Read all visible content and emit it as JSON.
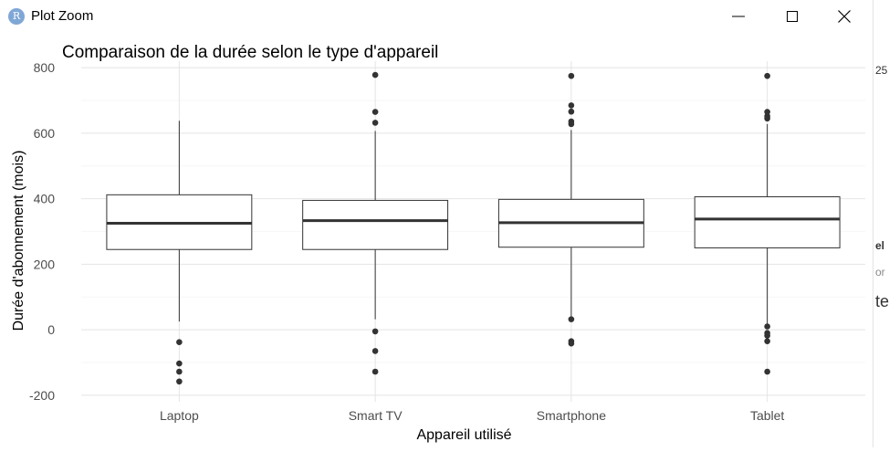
{
  "window": {
    "app_icon_letter": "R",
    "title": "Plot Zoom",
    "buttons": {
      "minimize": "minimize",
      "maximize": "maximize",
      "close": "close"
    }
  },
  "right_strip": {
    "fragments": [
      "25",
      "el",
      "or",
      "te"
    ]
  },
  "chart_data": {
    "type": "boxplot",
    "title": "Comparaison de la durée selon le type d'appareil",
    "xlabel": "Appareil utilisé",
    "ylabel": "Durée d'abonnement (mois)",
    "ylim": [
      -220,
      820
    ],
    "yticks": [
      -200,
      0,
      200,
      400,
      600,
      800
    ],
    "ytick_labels": [
      "-200",
      "0",
      "200",
      "400",
      "600",
      "800"
    ],
    "categories": [
      "Laptop",
      "Smart TV",
      "Smartphone",
      "Tablet"
    ],
    "boxes": [
      {
        "category": "Laptop",
        "whisker_low": 25,
        "q1": 245,
        "median": 325,
        "q3": 412,
        "whisker_high": 638,
        "outliers": [
          -38,
          -103,
          -128,
          -158
        ]
      },
      {
        "category": "Smart TV",
        "whisker_low": 32,
        "q1": 245,
        "median": 333,
        "q3": 395,
        "whisker_high": 607,
        "outliers": [
          -5,
          -65,
          -128,
          632,
          665,
          778
        ]
      },
      {
        "category": "Smartphone",
        "whisker_low": 40,
        "q1": 252,
        "median": 327,
        "q3": 398,
        "whisker_high": 610,
        "outliers": [
          32,
          -35,
          -42,
          628,
          636,
          666,
          685,
          775
        ]
      },
      {
        "category": "Tablet",
        "whisker_low": 18,
        "q1": 250,
        "median": 338,
        "q3": 406,
        "whisker_high": 628,
        "outliers": [
          10,
          -10,
          -18,
          -35,
          -128,
          645,
          652,
          665,
          775
        ]
      }
    ],
    "grid": true,
    "theme": "minimal"
  }
}
